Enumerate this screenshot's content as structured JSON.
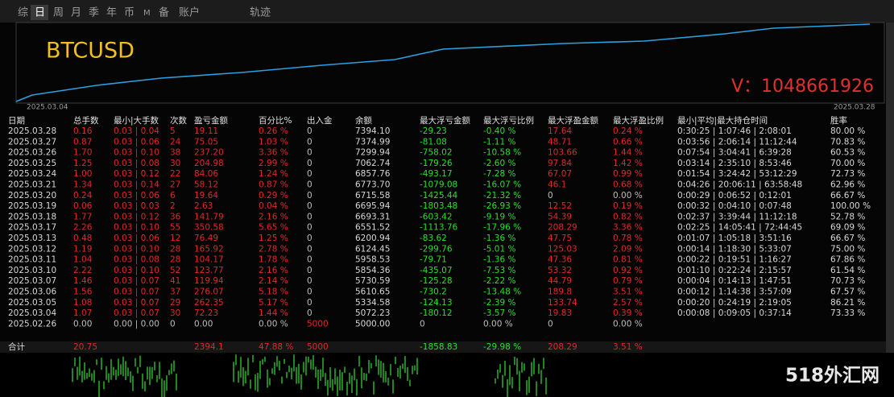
{
  "tabs": [
    "综",
    "日",
    "周",
    "月",
    "季",
    "年",
    "币",
    "M",
    "备",
    "账户",
    "轨迹"
  ],
  "selected_tab": 1,
  "symbol": "BTCUSD",
  "contact": "V：1048661926",
  "chart": {
    "start_label": "2025.03.04",
    "end_label": "2025.03.28"
  },
  "table": {
    "headers": [
      "日期",
      "总手数",
      "最小|大手数",
      "次数",
      "盈亏金额",
      "百分比%",
      "出入金",
      "余额",
      "最大浮亏金额",
      "最大浮亏比例",
      "最大浮盈金额",
      "最大浮盈比例",
      "最小|平均|最大持仓时间",
      "胜率"
    ],
    "rows": [
      [
        "2025.03.28",
        "0.16",
        "0.03 | 0.04",
        "5",
        "19.11",
        "0.26 %",
        "0",
        "7394.10",
        "-29.23",
        "-0.40 %",
        "17.64",
        "0.24 %",
        "0:30:25 | 1:07:46 | 2:08:01",
        "80.00 %"
      ],
      [
        "2025.03.27",
        "0.87",
        "0.03 | 0.06",
        "24",
        "75.05",
        "1.03 %",
        "0",
        "7374.99",
        "-81.08",
        "-1.11 %",
        "48.71",
        "0.66 %",
        "0:03:56 | 2:06:14 | 11:12:44",
        "70.83 %"
      ],
      [
        "2025.03.26",
        "1.70",
        "0.03 | 0.10",
        "38",
        "237.20",
        "3.36 %",
        "0",
        "7299.94",
        "-758.02",
        "-10.58 %",
        "103.66",
        "1.44 %",
        "0:07:54 | 3:04:41 | 6:39:28",
        "60.53 %"
      ],
      [
        "2025.03.25",
        "1.25",
        "0.03 | 0.08",
        "30",
        "204.98",
        "2.99 %",
        "0",
        "7062.74",
        "-179.26",
        "-2.60 %",
        "97.84",
        "1.42 %",
        "0:03:14 | 2:35:10 | 8:53:46",
        "70.00 %"
      ],
      [
        "2025.03.24",
        "1.00",
        "0.03 | 0.12",
        "22",
        "84.06",
        "1.24 %",
        "0",
        "6857.76",
        "-493.17",
        "-7.28 %",
        "67.07",
        "0.99 %",
        "0:01:54 | 3:24:42 | 53:12:29",
        "72.73 %"
      ],
      [
        "2025.03.21",
        "1.34",
        "0.03 | 0.14",
        "27",
        "58.12",
        "0.87 %",
        "0",
        "6773.70",
        "-1079.08",
        "-16.07 %",
        "46.1",
        "0.68 %",
        "0:04:26 | 20:06:11 | 63:58:48",
        "62.96 %"
      ],
      [
        "2025.03.20",
        "0.24",
        "0.03 | 0.06",
        "6",
        "19.64",
        "0.29 %",
        "0",
        "6715.58",
        "-1425.44",
        "-21.32 %",
        "0",
        "0.00 %",
        "0:00:29 | 0:06:52 | 0:12:01",
        "66.67 %"
      ],
      [
        "2025.03.19",
        "0.06",
        "0.03 | 0.03",
        "2",
        "2.63",
        "0.04 %",
        "0",
        "6695.94",
        "-1803.48",
        "-26.93 %",
        "12.52",
        "0.19 %",
        "0:00:32 | 0:04:10 | 0:07:48",
        "100.00 %"
      ],
      [
        "2025.03.18",
        "1.77",
        "0.03 | 0.12",
        "36",
        "141.79",
        "2.16 %",
        "0",
        "6693.31",
        "-603.42",
        "-9.19 %",
        "54.39",
        "0.82 %",
        "0:02:37 | 3:39:44 | 11:12:18",
        "52.78 %"
      ],
      [
        "2025.03.17",
        "2.26",
        "0.03 | 0.10",
        "55",
        "350.58",
        "5.65 %",
        "0",
        "6551.52",
        "-1113.76",
        "-17.96 %",
        "208.29",
        "3.36 %",
        "0:02:25 | 14:05:41 | 72:44:45",
        "69.09 %"
      ],
      [
        "2025.03.13",
        "0.48",
        "0.03 | 0.06",
        "12",
        "76.49",
        "1.25 %",
        "0",
        "6200.94",
        "-83.62",
        "-1.36 %",
        "47.75",
        "0.78 %",
        "0:01:07 | 1:05:18 | 3:51:16",
        "66.67 %"
      ],
      [
        "2025.03.12",
        "1.19",
        "0.03 | 0.10",
        "28",
        "165.92",
        "2.78 %",
        "0",
        "6124.45",
        "-299.76",
        "-5.01 %",
        "125.03",
        "2.09 %",
        "0:00:14 | 1:18:30 | 5:33:07",
        "75.00 %"
      ],
      [
        "2025.03.11",
        "1.04",
        "0.03 | 0.08",
        "28",
        "104.17",
        "1.78 %",
        "0",
        "5958.53",
        "-79.71",
        "-1.36 %",
        "47.36",
        "0.81 %",
        "0:00:22 | 0:19:51 | 1:16:27",
        "67.86 %"
      ],
      [
        "2025.03.10",
        "2.22",
        "0.03 | 0.10",
        "52",
        "123.77",
        "2.16 %",
        "0",
        "5854.36",
        "-435.07",
        "-7.53 %",
        "53.32",
        "0.92 %",
        "0:01:10 | 0:22:24 | 2:15:57",
        "61.54 %"
      ],
      [
        "2025.03.07",
        "1.46",
        "0.03 | 0.07",
        "41",
        "119.94",
        "2.14 %",
        "0",
        "5730.59",
        "-125.28",
        "-2.22 %",
        "44.79",
        "0.79 %",
        "0:00:04 | 0:14:13 | 1:47:51",
        "70.73 %"
      ],
      [
        "2025.03.06",
        "1.56",
        "0.03 | 0.07",
        "37",
        "276.07",
        "5.18 %",
        "0",
        "5610.65",
        "-730.2",
        "-13.48 %",
        "189.8",
        "3.51 %",
        "0:00:12 | 1:14:38 | 3:57:09",
        "67.57 %"
      ],
      [
        "2025.03.05",
        "1.08",
        "0.03 | 0.07",
        "29",
        "262.35",
        "5.17 %",
        "0",
        "5334.58",
        "-124.13",
        "-2.39 %",
        "133.74",
        "2.57 %",
        "0:00:20 | 0:24:19 | 2:19:05",
        "86.21 %"
      ],
      [
        "2025.03.04",
        "1.07",
        "0.03 | 0.07",
        "30",
        "72.23",
        "1.44 %",
        "0",
        "5072.23",
        "-180.12",
        "-3.57 %",
        "19.83",
        "0.39 %",
        "0:00:08 | 0:09:05 | 0:37:14",
        "73.33 %"
      ],
      [
        "2025.02.26",
        "0.00",
        "0.00 | 0.00",
        "0",
        "0.00",
        "0.00 %",
        "5000",
        "5000.00",
        "0",
        "0.00 %",
        "0",
        "0.00 %",
        null,
        null
      ]
    ],
    "total": [
      "合计",
      "20.75",
      null,
      null,
      "2394.1",
      "47.88 %",
      "5000",
      null,
      "-1858.83",
      "-29.98 %",
      "208.29",
      "3.51 %",
      null,
      null
    ]
  },
  "watermark": "518外汇网"
}
